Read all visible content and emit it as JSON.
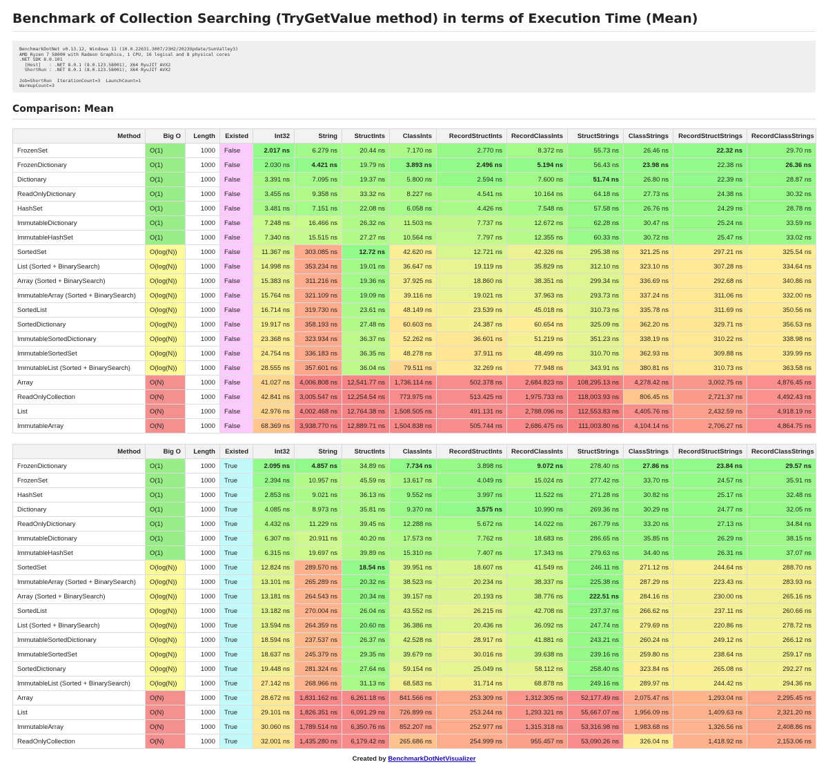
{
  "title": "Benchmark of Collection Searching (TryGetValue method) in terms of Execution Time (Mean)",
  "environment": "BenchmarkDotNet v0.13.12, Windows 11 (10.0.22631.3007/23H2/2023Update/SunValley3)\nAMD Ryzen 7 5800H with Radeon Graphics, 1 CPU, 16 logical and 8 physical cores\n.NET SDK 8.0.101\n  [Host]   : .NET 8.0.1 (8.0.123.58001), X64 RyuJIT AVX2\n  ShortRun : .NET 8.0.1 (8.0.123.58001), X64 RyuJIT AVX2\n\nJob=ShortRun  IterationCount=3  LaunchCount=1\nWarmupCount=3",
  "section_title": "Comparison: Mean",
  "footer": {
    "prefix": "Created by ",
    "link": "BenchmarkDotNetVisualizer"
  },
  "columns": [
    "Method",
    "Big O",
    "Length",
    "Existed",
    "Int32",
    "String",
    "StructInts",
    "ClassInts",
    "RecordStructInts",
    "RecordClassInts",
    "StructStrings",
    "ClassStrings",
    "RecordStructStrings",
    "RecordClassStrings"
  ],
  "colors": {
    "bigo": {
      "O(1)": "#99ee88",
      "O(log(N))": "#fbfb99",
      "O(N)": "#f59090"
    },
    "existed": {
      "False": "#fccafc",
      "True": "#c2fafa"
    }
  },
  "tables": [
    {
      "rows": [
        {
          "method": "FrozenSet",
          "bigo": "O(1)",
          "length": "1000",
          "existed": "False",
          "values": [
            "2.017 ns",
            "6.279 ns",
            "20.44 ns",
            "7.170 ns",
            "2.770 ns",
            "8.372 ns",
            "55.73 ns",
            "26.46 ns",
            "22.32 ns",
            "29.70 ns"
          ],
          "bold": [
            0,
            8
          ]
        },
        {
          "method": "FrozenDictionary",
          "bigo": "O(1)",
          "length": "1000",
          "existed": "False",
          "values": [
            "2.030 ns",
            "4.421 ns",
            "19.79 ns",
            "3.893 ns",
            "2.496 ns",
            "5.194 ns",
            "56.43 ns",
            "23.98 ns",
            "22.38 ns",
            "26.36 ns"
          ],
          "bold": [
            1,
            3,
            4,
            5,
            7,
            9
          ]
        },
        {
          "method": "Dictionary",
          "bigo": "O(1)",
          "length": "1000",
          "existed": "False",
          "values": [
            "3.391 ns",
            "7.095 ns",
            "19.37 ns",
            "5.800 ns",
            "2.594 ns",
            "7.600 ns",
            "51.74 ns",
            "26.80 ns",
            "22.39 ns",
            "28.87 ns"
          ],
          "bold": [
            6
          ]
        },
        {
          "method": "ReadOnlyDictionary",
          "bigo": "O(1)",
          "length": "1000",
          "existed": "False",
          "values": [
            "3.455 ns",
            "9.358 ns",
            "33.32 ns",
            "8.227 ns",
            "4.541 ns",
            "10.164 ns",
            "64.18 ns",
            "27.73 ns",
            "24.38 ns",
            "30.32 ns"
          ],
          "bold": []
        },
        {
          "method": "HashSet",
          "bigo": "O(1)",
          "length": "1000",
          "existed": "False",
          "values": [
            "3.481 ns",
            "7.151 ns",
            "22.08 ns",
            "6.058 ns",
            "4.426 ns",
            "7.548 ns",
            "57.58 ns",
            "26.76 ns",
            "24.29 ns",
            "28.78 ns"
          ],
          "bold": []
        },
        {
          "method": "ImmutableDictionary",
          "bigo": "O(1)",
          "length": "1000",
          "existed": "False",
          "values": [
            "7.248 ns",
            "16.466 ns",
            "26.32 ns",
            "11.503 ns",
            "7.737 ns",
            "12.672 ns",
            "62.28 ns",
            "30.47 ns",
            "25.24 ns",
            "33.59 ns"
          ],
          "bold": []
        },
        {
          "method": "ImmutableHashSet",
          "bigo": "O(1)",
          "length": "1000",
          "existed": "False",
          "values": [
            "7.340 ns",
            "15.515 ns",
            "27.27 ns",
            "10.564 ns",
            "7.797 ns",
            "12.355 ns",
            "60.33 ns",
            "30.72 ns",
            "25.47 ns",
            "33.02 ns"
          ],
          "bold": []
        },
        {
          "method": "SortedSet",
          "bigo": "O(log(N))",
          "length": "1000",
          "existed": "False",
          "values": [
            "11.367 ns",
            "303.085 ns",
            "12.72 ns",
            "42.620 ns",
            "12.721 ns",
            "42.326 ns",
            "295.38 ns",
            "321.25 ns",
            "297.21 ns",
            "325.54 ns"
          ],
          "bold": [
            2
          ]
        },
        {
          "method": "List (Sorted + BinarySearch)",
          "bigo": "O(log(N))",
          "length": "1000",
          "existed": "False",
          "values": [
            "14.998 ns",
            "353.234 ns",
            "19.01 ns",
            "36.647 ns",
            "19.119 ns",
            "35.829 ns",
            "312.10 ns",
            "323.10 ns",
            "307.28 ns",
            "334.64 ns"
          ],
          "bold": []
        },
        {
          "method": "Array (Sorted + BinarySearch)",
          "bigo": "O(log(N))",
          "length": "1000",
          "existed": "False",
          "values": [
            "15.383 ns",
            "311.216 ns",
            "19.36 ns",
            "37.925 ns",
            "18.860 ns",
            "38.351 ns",
            "299.34 ns",
            "336.69 ns",
            "292.68 ns",
            "340.86 ns"
          ],
          "bold": []
        },
        {
          "method": "ImmutableArray (Sorted + BinarySearch)",
          "bigo": "O(log(N))",
          "length": "1000",
          "existed": "False",
          "values": [
            "15.764 ns",
            "321.109 ns",
            "19.09 ns",
            "39.116 ns",
            "19.021 ns",
            "37.963 ns",
            "293.73 ns",
            "337.24 ns",
            "311.06 ns",
            "332.00 ns"
          ],
          "bold": []
        },
        {
          "method": "SortedList",
          "bigo": "O(log(N))",
          "length": "1000",
          "existed": "False",
          "values": [
            "16.714 ns",
            "319.730 ns",
            "23.61 ns",
            "48.149 ns",
            "23.539 ns",
            "45.018 ns",
            "310.73 ns",
            "335.78 ns",
            "311.69 ns",
            "350.56 ns"
          ],
          "bold": []
        },
        {
          "method": "SortedDictionary",
          "bigo": "O(log(N))",
          "length": "1000",
          "existed": "False",
          "values": [
            "19.917 ns",
            "358.193 ns",
            "27.48 ns",
            "60.603 ns",
            "24.387 ns",
            "60.654 ns",
            "325.09 ns",
            "362.20 ns",
            "329.71 ns",
            "356.53 ns"
          ],
          "bold": []
        },
        {
          "method": "ImmutableSortedDictionary",
          "bigo": "O(log(N))",
          "length": "1000",
          "existed": "False",
          "values": [
            "23.368 ns",
            "323.934 ns",
            "36.37 ns",
            "52.262 ns",
            "36.601 ns",
            "51.219 ns",
            "351.23 ns",
            "338.19 ns",
            "310.22 ns",
            "338.98 ns"
          ],
          "bold": []
        },
        {
          "method": "ImmutableSortedSet",
          "bigo": "O(log(N))",
          "length": "1000",
          "existed": "False",
          "values": [
            "24.754 ns",
            "336.183 ns",
            "36.35 ns",
            "48.278 ns",
            "37.911 ns",
            "48.499 ns",
            "310.70 ns",
            "362.93 ns",
            "309.88 ns",
            "339.99 ns"
          ],
          "bold": []
        },
        {
          "method": "ImmutableList (Sorted + BinarySearch)",
          "bigo": "O(log(N))",
          "length": "1000",
          "existed": "False",
          "values": [
            "28.555 ns",
            "357.601 ns",
            "36.04 ns",
            "79.511 ns",
            "32.269 ns",
            "77.948 ns",
            "343.91 ns",
            "380.81 ns",
            "310.73 ns",
            "363.58 ns"
          ],
          "bold": []
        },
        {
          "method": "Array",
          "bigo": "O(N)",
          "length": "1000",
          "existed": "False",
          "values": [
            "41.027 ns",
            "4,006.808 ns",
            "12,541.77 ns",
            "1,736.114 ns",
            "502.378 ns",
            "2,684.823 ns",
            "108,295.13 ns",
            "4,278.42 ns",
            "3,002.75 ns",
            "4,876.45 ns"
          ],
          "bold": []
        },
        {
          "method": "ReadOnlyCollection",
          "bigo": "O(N)",
          "length": "1000",
          "existed": "False",
          "values": [
            "42.841 ns",
            "3,005.547 ns",
            "12,254.54 ns",
            "773.975 ns",
            "513.425 ns",
            "1,975.733 ns",
            "118,003.93 ns",
            "806.45 ns",
            "2,721.37 ns",
            "4,492.43 ns"
          ],
          "bold": []
        },
        {
          "method": "List",
          "bigo": "O(N)",
          "length": "1000",
          "existed": "False",
          "values": [
            "42.976 ns",
            "4,002.468 ns",
            "12,764.38 ns",
            "1,508.505 ns",
            "491.131 ns",
            "2,788.096 ns",
            "112,553.83 ns",
            "4,405.76 ns",
            "2,432.59 ns",
            "4,918.19 ns"
          ],
          "bold": []
        },
        {
          "method": "ImmutableArray",
          "bigo": "O(N)",
          "length": "1000",
          "existed": "False",
          "values": [
            "68.369 ns",
            "3,938.770 ns",
            "12,889.71 ns",
            "1,504.838 ns",
            "505.744 ns",
            "2,686.475 ns",
            "111,003.80 ns",
            "4,104.14 ns",
            "2,706.27 ns",
            "4,864.75 ns"
          ],
          "bold": []
        }
      ]
    },
    {
      "rows": [
        {
          "method": "FrozenDictionary",
          "bigo": "O(1)",
          "length": "1000",
          "existed": "True",
          "values": [
            "2.095 ns",
            "4.857 ns",
            "34.89 ns",
            "7.734 ns",
            "3.898 ns",
            "9.072 ns",
            "278.40 ns",
            "27.86 ns",
            "23.84 ns",
            "29.57 ns"
          ],
          "bold": [
            0,
            1,
            3,
            5,
            7,
            8,
            9
          ]
        },
        {
          "method": "FrozenSet",
          "bigo": "O(1)",
          "length": "1000",
          "existed": "True",
          "values": [
            "2.394 ns",
            "10.957 ns",
            "45.59 ns",
            "13.617 ns",
            "4.049 ns",
            "15.024 ns",
            "277.42 ns",
            "33.70 ns",
            "24.57 ns",
            "35.91 ns"
          ],
          "bold": []
        },
        {
          "method": "HashSet",
          "bigo": "O(1)",
          "length": "1000",
          "existed": "True",
          "values": [
            "2.853 ns",
            "9.021 ns",
            "36.13 ns",
            "9.552 ns",
            "3.997 ns",
            "11.522 ns",
            "271.28 ns",
            "30.82 ns",
            "25.17 ns",
            "32.48 ns"
          ],
          "bold": []
        },
        {
          "method": "Dictionary",
          "bigo": "O(1)",
          "length": "1000",
          "existed": "True",
          "values": [
            "4.085 ns",
            "8.973 ns",
            "35.81 ns",
            "9.370 ns",
            "3.575 ns",
            "10.990 ns",
            "269.36 ns",
            "30.29 ns",
            "24.77 ns",
            "32.05 ns"
          ],
          "bold": [
            4
          ]
        },
        {
          "method": "ReadOnlyDictionary",
          "bigo": "O(1)",
          "length": "1000",
          "existed": "True",
          "values": [
            "4.432 ns",
            "11.229 ns",
            "39.45 ns",
            "12.288 ns",
            "5.672 ns",
            "14.022 ns",
            "267.79 ns",
            "33.20 ns",
            "27.13 ns",
            "34.84 ns"
          ],
          "bold": []
        },
        {
          "method": "ImmutableDictionary",
          "bigo": "O(1)",
          "length": "1000",
          "existed": "True",
          "values": [
            "6.307 ns",
            "20.911 ns",
            "40.20 ns",
            "17.573 ns",
            "7.762 ns",
            "18.683 ns",
            "286.65 ns",
            "35.85 ns",
            "26.29 ns",
            "38.15 ns"
          ],
          "bold": []
        },
        {
          "method": "ImmutableHashSet",
          "bigo": "O(1)",
          "length": "1000",
          "existed": "True",
          "values": [
            "6.315 ns",
            "19.697 ns",
            "39.89 ns",
            "15.310 ns",
            "7.407 ns",
            "17.343 ns",
            "279.63 ns",
            "34.40 ns",
            "26.31 ns",
            "37.07 ns"
          ],
          "bold": []
        },
        {
          "method": "SortedSet",
          "bigo": "O(log(N))",
          "length": "1000",
          "existed": "True",
          "values": [
            "12.824 ns",
            "289.570 ns",
            "18.54 ns",
            "39.951 ns",
            "18.607 ns",
            "41.549 ns",
            "246.11 ns",
            "271.12 ns",
            "244.64 ns",
            "288.70 ns"
          ],
          "bold": [
            2
          ]
        },
        {
          "method": "ImmutableArray (Sorted + BinarySearch)",
          "bigo": "O(log(N))",
          "length": "1000",
          "existed": "True",
          "values": [
            "13.101 ns",
            "265.289 ns",
            "20.32 ns",
            "38.523 ns",
            "20.234 ns",
            "38.337 ns",
            "225.38 ns",
            "287.29 ns",
            "223.43 ns",
            "283.93 ns"
          ],
          "bold": []
        },
        {
          "method": "Array (Sorted + BinarySearch)",
          "bigo": "O(log(N))",
          "length": "1000",
          "existed": "True",
          "values": [
            "13.181 ns",
            "264.543 ns",
            "20.34 ns",
            "39.157 ns",
            "20.193 ns",
            "38.776 ns",
            "222.51 ns",
            "284.16 ns",
            "230.00 ns",
            "265.16 ns"
          ],
          "bold": [
            6
          ]
        },
        {
          "method": "SortedList",
          "bigo": "O(log(N))",
          "length": "1000",
          "existed": "True",
          "values": [
            "13.182 ns",
            "270.004 ns",
            "26.04 ns",
            "43.552 ns",
            "26.215 ns",
            "42.708 ns",
            "237.37 ns",
            "266.62 ns",
            "237.11 ns",
            "260.66 ns"
          ],
          "bold": []
        },
        {
          "method": "List (Sorted + BinarySearch)",
          "bigo": "O(log(N))",
          "length": "1000",
          "existed": "True",
          "values": [
            "13.594 ns",
            "264.359 ns",
            "20.60 ns",
            "36.386 ns",
            "20.436 ns",
            "36.092 ns",
            "247.74 ns",
            "279.69 ns",
            "220.86 ns",
            "278.72 ns"
          ],
          "bold": []
        },
        {
          "method": "ImmutableSortedDictionary",
          "bigo": "O(log(N))",
          "length": "1000",
          "existed": "True",
          "values": [
            "18.594 ns",
            "237.537 ns",
            "26.37 ns",
            "42.528 ns",
            "28.917 ns",
            "41.881 ns",
            "243.21 ns",
            "260.24 ns",
            "249.12 ns",
            "266.12 ns"
          ],
          "bold": []
        },
        {
          "method": "ImmutableSortedSet",
          "bigo": "O(log(N))",
          "length": "1000",
          "existed": "True",
          "values": [
            "18.637 ns",
            "245.379 ns",
            "29.35 ns",
            "39.679 ns",
            "30.016 ns",
            "39.638 ns",
            "239.16 ns",
            "259.80 ns",
            "238.64 ns",
            "259.17 ns"
          ],
          "bold": []
        },
        {
          "method": "SortedDictionary",
          "bigo": "O(log(N))",
          "length": "1000",
          "existed": "True",
          "values": [
            "19.448 ns",
            "281.324 ns",
            "27.64 ns",
            "59.154 ns",
            "25.049 ns",
            "58.112 ns",
            "258.40 ns",
            "323.84 ns",
            "265.08 ns",
            "292.27 ns"
          ],
          "bold": []
        },
        {
          "method": "ImmutableList (Sorted + BinarySearch)",
          "bigo": "O(log(N))",
          "length": "1000",
          "existed": "True",
          "values": [
            "27.142 ns",
            "268.966 ns",
            "31.13 ns",
            "68.583 ns",
            "31.714 ns",
            "68.878 ns",
            "249.16 ns",
            "289.97 ns",
            "244.42 ns",
            "294.36 ns"
          ],
          "bold": []
        },
        {
          "method": "Array",
          "bigo": "O(N)",
          "length": "1000",
          "existed": "True",
          "values": [
            "28.672 ns",
            "1,831.162 ns",
            "6,261.18 ns",
            "841.566 ns",
            "253.309 ns",
            "1,312.305 ns",
            "52,177.49 ns",
            "2,075.47 ns",
            "1,293.04 ns",
            "2,295.45 ns"
          ],
          "bold": []
        },
        {
          "method": "List",
          "bigo": "O(N)",
          "length": "1000",
          "existed": "True",
          "values": [
            "29.101 ns",
            "1,826.351 ns",
            "6,091.29 ns",
            "726.899 ns",
            "253.244 ns",
            "1,293.321 ns",
            "55,667.07 ns",
            "1,956.09 ns",
            "1,409.63 ns",
            "2,321.20 ns"
          ],
          "bold": []
        },
        {
          "method": "ImmutableArray",
          "bigo": "O(N)",
          "length": "1000",
          "existed": "True",
          "values": [
            "30.060 ns",
            "1,789.514 ns",
            "6,350.76 ns",
            "852.207 ns",
            "252.977 ns",
            "1,315.318 ns",
            "53,316.98 ns",
            "1,983.68 ns",
            "1,326.56 ns",
            "2,408.86 ns"
          ],
          "bold": []
        },
        {
          "method": "ReadOnlyCollection",
          "bigo": "O(N)",
          "length": "1000",
          "existed": "True",
          "values": [
            "32.001 ns",
            "1,435.280 ns",
            "6,179.42 ns",
            "265.686 ns",
            "254.999 ns",
            "955.457 ns",
            "53,090.26 ns",
            "326.04 ns",
            "1,418.92 ns",
            "2,153.06 ns"
          ],
          "bold": []
        }
      ]
    }
  ]
}
